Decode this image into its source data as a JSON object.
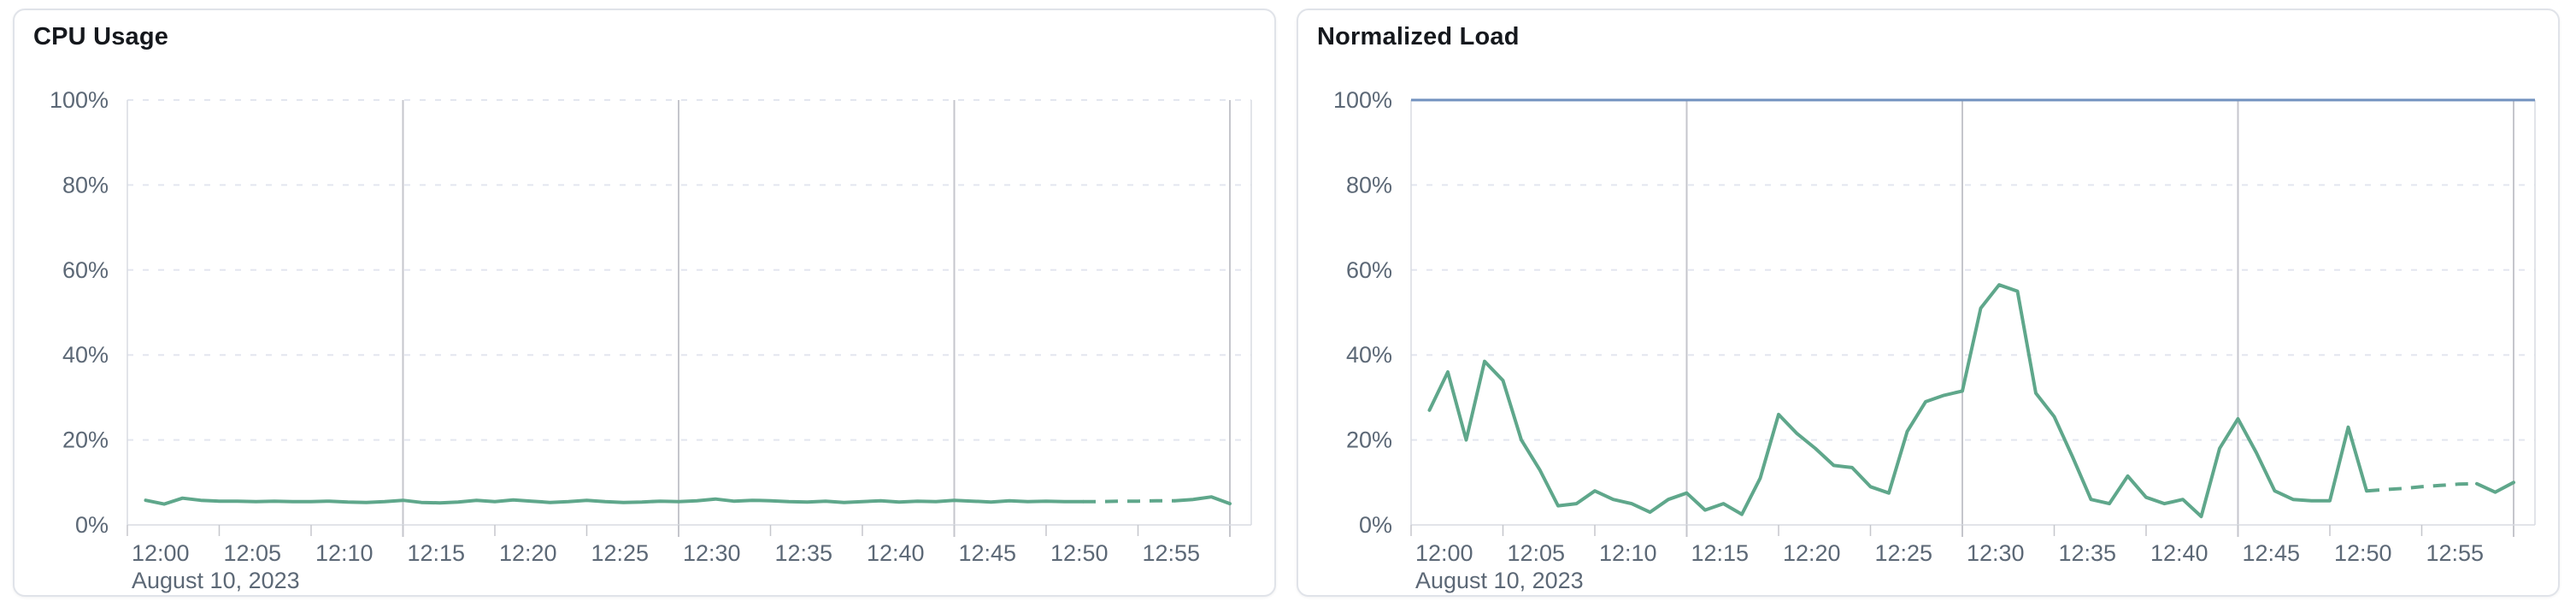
{
  "colors": {
    "series_green": "#5fa78b",
    "limit_blue": "#7292bf",
    "grid_dash": "#e3e6ef",
    "grid_major": "#c5c6cc",
    "axis_border": "#d8dbe2",
    "label_text": "#5c6876",
    "title_text": "#15181d",
    "card_border": "#e0e3e9",
    "card_background": "#ffffff"
  },
  "chart_data": [
    {
      "type": "line",
      "title": "CPU Usage",
      "date_label": "August 10, 2023",
      "legend": "none",
      "grid": {
        "horizontal": "dashed",
        "vertical_major": "solid"
      },
      "x_axis": {
        "tick_labels": [
          "12:00",
          "12:05",
          "12:10",
          "12:15",
          "12:20",
          "12:25",
          "12:30",
          "12:35",
          "12:40",
          "12:45",
          "12:50",
          "12:55"
        ],
        "tick_minutes": [
          0,
          5,
          10,
          15,
          20,
          25,
          30,
          35,
          40,
          45,
          50,
          55
        ],
        "major_gridline_minutes": [
          15,
          30,
          45,
          60
        ],
        "start_minute": 0,
        "end_minute": 61
      },
      "y_axis": {
        "range": [
          0,
          100
        ],
        "unit": "%",
        "ticks": [
          {
            "label": "0%",
            "value": 0
          },
          {
            "label": "20%",
            "value": 20
          },
          {
            "label": "40%",
            "value": 40
          },
          {
            "label": "60%",
            "value": 60
          },
          {
            "label": "80%",
            "value": 80
          },
          {
            "label": "100%",
            "value": 100
          }
        ]
      },
      "series": [
        {
          "name": "CPU Usage",
          "color": "#5fa78b",
          "start_minute": 1,
          "step_minutes": 1,
          "dashed_segment_minutes": [
            52,
            57
          ],
          "values": [
            5.8,
            4.9,
            6.3,
            5.8,
            5.6,
            5.6,
            5.5,
            5.6,
            5.5,
            5.5,
            5.6,
            5.4,
            5.3,
            5.5,
            5.8,
            5.3,
            5.2,
            5.4,
            5.8,
            5.5,
            5.9,
            5.6,
            5.3,
            5.5,
            5.8,
            5.5,
            5.3,
            5.4,
            5.6,
            5.5,
            5.7,
            6.1,
            5.6,
            5.8,
            5.7,
            5.5,
            5.4,
            5.6,
            5.3,
            5.5,
            5.7,
            5.4,
            5.6,
            5.5,
            5.8,
            5.6,
            5.4,
            5.7,
            5.5,
            5.6,
            5.5,
            5.5,
            5.5,
            5.6,
            5.6,
            5.7,
            5.7,
            6.0,
            6.6,
            5.0
          ]
        }
      ]
    },
    {
      "type": "line",
      "title": "Normalized Load",
      "date_label": "August 10, 2023",
      "legend": "none",
      "grid": {
        "horizontal": "dashed",
        "vertical_major": "solid"
      },
      "x_axis": {
        "tick_labels": [
          "12:00",
          "12:05",
          "12:10",
          "12:15",
          "12:20",
          "12:25",
          "12:30",
          "12:35",
          "12:40",
          "12:45",
          "12:50",
          "12:55"
        ],
        "tick_minutes": [
          0,
          5,
          10,
          15,
          20,
          25,
          30,
          35,
          40,
          45,
          50,
          55
        ],
        "major_gridline_minutes": [
          15,
          30,
          45,
          60
        ],
        "start_minute": 0,
        "end_minute": 61
      },
      "y_axis": {
        "range": [
          0,
          100
        ],
        "unit": "%",
        "ticks": [
          {
            "label": "0%",
            "value": 0
          },
          {
            "label": "20%",
            "value": 20
          },
          {
            "label": "40%",
            "value": 40
          },
          {
            "label": "60%",
            "value": 60
          },
          {
            "label": "80%",
            "value": 80
          },
          {
            "label": "100%",
            "value": 100
          }
        ]
      },
      "series": [
        {
          "name": "Normalized Load",
          "color": "#5fa78b",
          "start_minute": 1,
          "step_minutes": 1,
          "dashed_segment_minutes": [
            52,
            58
          ],
          "values": [
            27,
            36,
            20,
            38.5,
            34,
            20,
            13,
            4.5,
            5,
            8,
            6,
            5,
            3,
            6,
            7.5,
            3.5,
            5,
            2.5,
            11,
            26,
            21.5,
            18,
            14,
            13.5,
            9,
            7.5,
            22,
            29,
            30.5,
            31.5,
            51,
            56.5,
            55,
            31,
            25.5,
            16,
            6,
            5,
            11.5,
            6.5,
            5,
            6,
            2,
            18,
            25,
            17,
            8,
            6,
            5.7,
            5.7,
            23,
            8,
            8.3,
            8.6,
            9,
            9.3,
            9.6,
            9.7,
            7.7,
            10
          ]
        },
        {
          "name": "Limit",
          "type": "limit_line",
          "color": "#7292bf",
          "value": 100
        }
      ]
    }
  ]
}
